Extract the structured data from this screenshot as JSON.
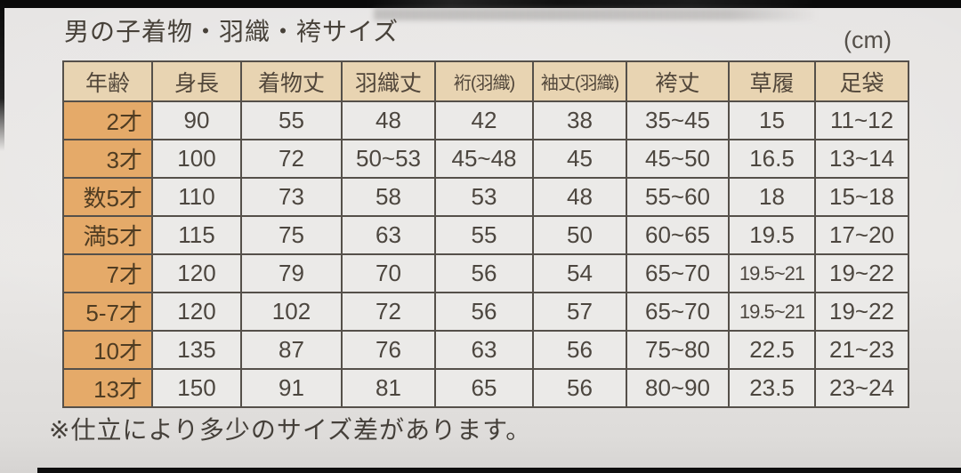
{
  "page": {
    "title": "男の子着物・羽織・袴サイズ",
    "unit_label": "(cm)",
    "footnote": "※仕立により多少のサイズ差があります。"
  },
  "table": {
    "columns": [
      "年齢",
      "身長",
      "着物丈",
      "羽織丈",
      "裄(羽織)",
      "袖丈(羽織)",
      "袴丈",
      "草履",
      "足袋"
    ],
    "rows": [
      [
        "2才",
        "90",
        "55",
        "48",
        "42",
        "38",
        "35~45",
        "15",
        "11~12"
      ],
      [
        "3才",
        "100",
        "72",
        "50~53",
        "45~48",
        "45",
        "45~50",
        "16.5",
        "13~14"
      ],
      [
        "数5才",
        "110",
        "73",
        "58",
        "53",
        "48",
        "55~60",
        "18",
        "15~18"
      ],
      [
        "満5才",
        "115",
        "75",
        "63",
        "55",
        "50",
        "60~65",
        "19.5",
        "17~20"
      ],
      [
        "7才",
        "120",
        "79",
        "70",
        "56",
        "54",
        "65~70",
        "19.5~21",
        "19~22"
      ],
      [
        "5-7才",
        "120",
        "102",
        "72",
        "56",
        "57",
        "65~70",
        "19.5~21",
        "19~22"
      ],
      [
        "10才",
        "135",
        "87",
        "76",
        "63",
        "56",
        "75~80",
        "22.5",
        "21~23"
      ],
      [
        "13才",
        "150",
        "91",
        "81",
        "65",
        "56",
        "80~90",
        "23.5",
        "23~24"
      ]
    ]
  },
  "colors": {
    "header_bg": "#e8d4b2",
    "age_bg": "#e5aa69",
    "cell_bg": "#ebeae8",
    "border": "#55504a"
  }
}
